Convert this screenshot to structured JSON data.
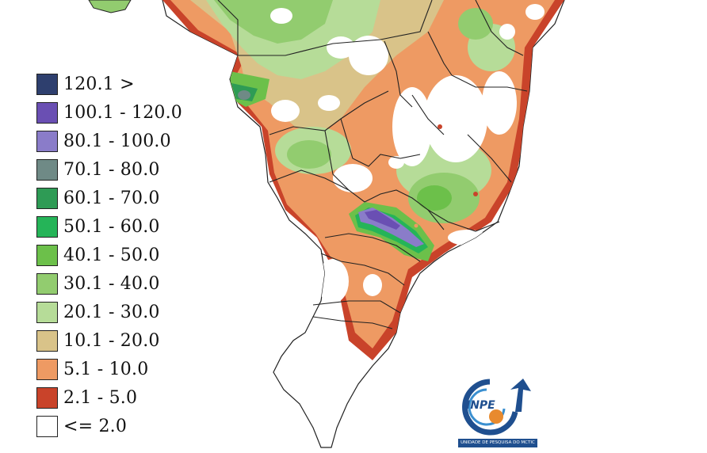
{
  "legend": {
    "items": [
      {
        "label": "120.1 >",
        "color": "#2e3f6e"
      },
      {
        "label": "100.1 - 120.0",
        "color": "#6a4fb3"
      },
      {
        "label": "80.1 - 100.0",
        "color": "#8a7cc9"
      },
      {
        "label": "70.1 - 80.0",
        "color": "#6f8a86"
      },
      {
        "label": "60.1 - 70.0",
        "color": "#2e9b55"
      },
      {
        "label": "50.1 - 60.0",
        "color": "#25b458"
      },
      {
        "label": "40.1 - 50.0",
        "color": "#6cc04a"
      },
      {
        "label": "30.1 - 40.0",
        "color": "#92cc6f"
      },
      {
        "label": "20.1 - 30.0",
        "color": "#b6dc98"
      },
      {
        "label": "10.1 - 20.0",
        "color": "#d9c389"
      },
      {
        "label": "5.1 - 10.0",
        "color": "#ee9a63"
      },
      {
        "label": "2.1 - 5.0",
        "color": "#c9432a"
      },
      {
        "label": "<= 2.0",
        "color": "#ffffff"
      }
    ]
  },
  "logo": {
    "name": "INPE",
    "caption": "UNIDADE DE PESQUISA DO MCTIC",
    "primary_color": "#1f4f8f",
    "accent_color": "#e88a2e"
  }
}
